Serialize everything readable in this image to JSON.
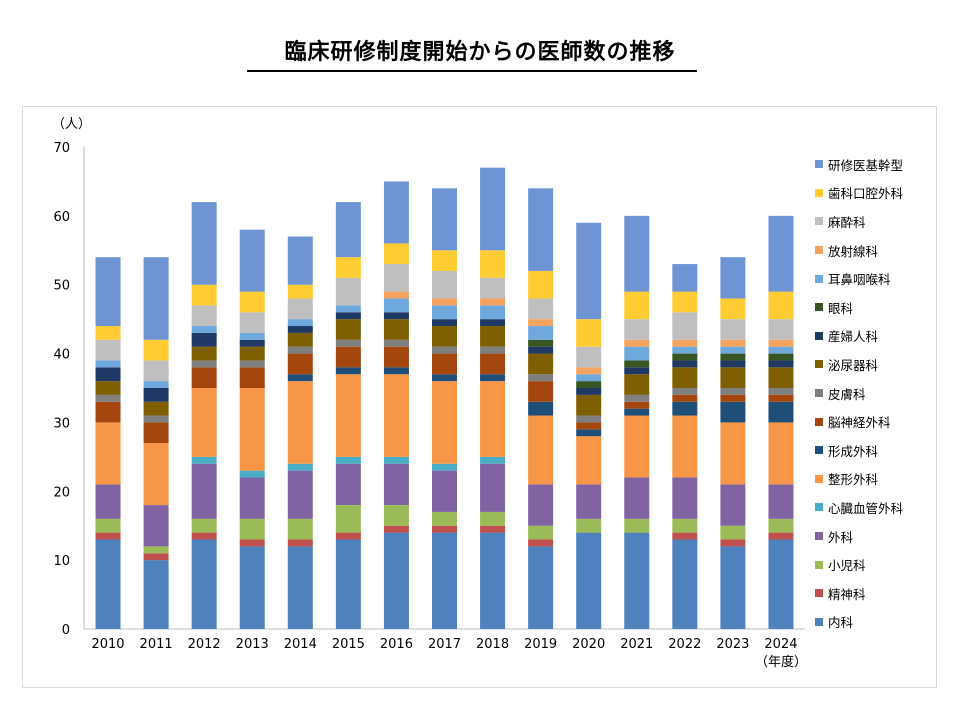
{
  "title": "臨床研修制度開始からの医師数の推移",
  "chart_data": {
    "type": "bar",
    "stacked": true,
    "title": "臨床研修制度開始からの医師数の推移",
    "ylabel": "（人）",
    "xlabel": "（年度）",
    "ylim": [
      0,
      70
    ],
    "yticks": [
      0,
      10,
      20,
      30,
      40,
      50,
      60,
      70
    ],
    "grid": false,
    "legend_position": "right",
    "categories": [
      "2010",
      "2011",
      "2012",
      "2013",
      "2014",
      "2015",
      "2016",
      "2017",
      "2018",
      "2019",
      "2020",
      "2021",
      "2022",
      "2023",
      "2024"
    ],
    "series": [
      {
        "name": "内科",
        "color": "#4f81bd",
        "values": [
          13,
          10,
          13,
          12,
          12,
          13,
          14,
          14,
          14,
          12,
          14,
          14,
          13,
          12,
          13
        ]
      },
      {
        "name": "精神科",
        "color": "#c0504d",
        "values": [
          1,
          1,
          1,
          1,
          1,
          1,
          1,
          1,
          1,
          1,
          0,
          0,
          1,
          1,
          1
        ]
      },
      {
        "name": "小児科",
        "color": "#9bbb59",
        "values": [
          2,
          1,
          2,
          3,
          3,
          4,
          3,
          2,
          2,
          2,
          2,
          2,
          2,
          2,
          2
        ]
      },
      {
        "name": "外科",
        "color": "#8064a2",
        "values": [
          5,
          6,
          8,
          6,
          7,
          6,
          6,
          6,
          7,
          6,
          5,
          6,
          6,
          6,
          5
        ]
      },
      {
        "name": "心臓血管外科",
        "color": "#4bacc6",
        "values": [
          0,
          0,
          1,
          1,
          1,
          1,
          1,
          1,
          1,
          0,
          0,
          0,
          0,
          0,
          0
        ]
      },
      {
        "name": "整形外科",
        "color": "#f79646",
        "values": [
          9,
          9,
          10,
          12,
          12,
          12,
          12,
          12,
          11,
          10,
          7,
          9,
          9,
          9,
          9
        ]
      },
      {
        "name": "形成外科",
        "color": "#1f4e79",
        "values": [
          0,
          0,
          0,
          0,
          1,
          1,
          1,
          1,
          1,
          2,
          1,
          1,
          2,
          3,
          3
        ]
      },
      {
        "name": "脳神経外科",
        "color": "#a5460f",
        "values": [
          3,
          3,
          3,
          3,
          3,
          3,
          3,
          3,
          3,
          3,
          1,
          1,
          1,
          1,
          1
        ]
      },
      {
        "name": "皮膚科",
        "color": "#7f7f7f",
        "values": [
          1,
          1,
          1,
          1,
          1,
          1,
          1,
          1,
          1,
          1,
          1,
          1,
          1,
          1,
          1
        ]
      },
      {
        "name": "泌尿器科",
        "color": "#7f6000",
        "values": [
          2,
          2,
          2,
          2,
          2,
          3,
          3,
          3,
          3,
          3,
          3,
          3,
          3,
          3,
          3
        ]
      },
      {
        "name": "産婦人科",
        "color": "#203864",
        "values": [
          2,
          2,
          2,
          1,
          1,
          1,
          1,
          1,
          1,
          1,
          1,
          1,
          1,
          1,
          1
        ]
      },
      {
        "name": "眼科",
        "color": "#375623",
        "values": [
          0,
          0,
          0,
          0,
          0,
          0,
          0,
          0,
          0,
          1,
          1,
          1,
          1,
          1,
          1
        ]
      },
      {
        "name": "耳鼻咽喉科",
        "color": "#6fa8dc",
        "values": [
          1,
          1,
          1,
          1,
          1,
          1,
          2,
          2,
          2,
          2,
          1,
          2,
          1,
          1,
          1
        ]
      },
      {
        "name": "放射線科",
        "color": "#f4a460",
        "values": [
          0,
          0,
          0,
          0,
          0,
          0,
          1,
          1,
          1,
          1,
          1,
          1,
          1,
          1,
          1
        ]
      },
      {
        "name": "麻酔科",
        "color": "#bfbfbf",
        "values": [
          3,
          3,
          3,
          3,
          3,
          4,
          4,
          4,
          3,
          3,
          3,
          3,
          4,
          3,
          3
        ]
      },
      {
        "name": "歯科口腔外科",
        "color": "#ffcc33",
        "values": [
          2,
          3,
          3,
          3,
          2,
          3,
          3,
          3,
          4,
          4,
          4,
          4,
          3,
          3,
          4
        ]
      },
      {
        "name": "研修医基幹型",
        "color": "#6f94d4",
        "values": [
          10,
          12,
          12,
          9,
          7,
          8,
          9,
          9,
          12,
          12,
          14,
          11,
          4,
          6,
          11
        ]
      }
    ]
  }
}
